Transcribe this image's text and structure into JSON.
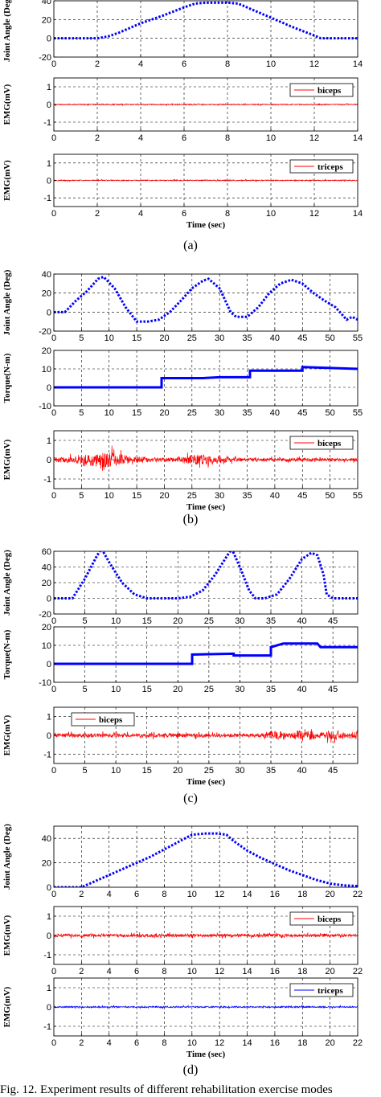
{
  "chart_data": [
    {
      "type": "line",
      "panel": "a",
      "ylabel": "Joint Angle (Deg)",
      "xlim": [
        0,
        14
      ],
      "ylim": [
        -20,
        40
      ],
      "xticks": [
        0,
        2,
        4,
        6,
        8,
        10,
        12,
        14
      ],
      "yticks": [
        -20,
        0,
        20,
        40
      ],
      "grid": true,
      "series": [
        {
          "color": "#0000ff",
          "style": "dotted",
          "x": [
            0,
            2,
            2.5,
            3,
            4,
            5,
            6,
            6.5,
            7,
            8,
            8.5,
            9,
            10,
            11,
            12,
            12.3,
            13,
            14
          ],
          "y": [
            0,
            0,
            2,
            6,
            16,
            24,
            33,
            37,
            38,
            38,
            37,
            32,
            22,
            12,
            3,
            0,
            0,
            0
          ]
        }
      ]
    },
    {
      "type": "line",
      "panel": "a",
      "ylabel": "EMG(mV)",
      "xlim": [
        0,
        14
      ],
      "ylim": [
        -1.5,
        1.5
      ],
      "xticks": [
        0,
        2,
        4,
        6,
        8,
        10,
        12,
        14
      ],
      "yticks": [
        -1,
        0,
        1
      ],
      "grid": true,
      "legend": "top-right",
      "series": [
        {
          "name": "biceps",
          "color": "#ff0000",
          "noise": 0.03,
          "x": [
            0,
            14
          ],
          "y": [
            0,
            0
          ]
        }
      ]
    },
    {
      "type": "line",
      "panel": "a",
      "ylabel": "EMG(mV)",
      "xlabel": "Time (sec)",
      "xlim": [
        0,
        14
      ],
      "ylim": [
        -1.5,
        1.5
      ],
      "xticks": [
        0,
        2,
        4,
        6,
        8,
        10,
        12,
        14
      ],
      "yticks": [
        -1,
        0,
        1
      ],
      "grid": true,
      "legend": "top-right",
      "series": [
        {
          "name": "triceps",
          "color": "#ff0000",
          "noise": 0.03,
          "x": [
            0,
            14
          ],
          "y": [
            0,
            0
          ]
        }
      ]
    },
    {
      "type": "line",
      "panel": "b",
      "ylabel": "Joint Angle (Deg)",
      "xlim": [
        0,
        55
      ],
      "ylim": [
        -20,
        40
      ],
      "xticks": [
        0,
        5,
        10,
        15,
        20,
        25,
        30,
        35,
        40,
        45,
        50,
        55
      ],
      "yticks": [
        -20,
        0,
        20,
        40
      ],
      "grid": true,
      "series": [
        {
          "color": "#0000ff",
          "style": "dotted",
          "x": [
            0,
            2,
            4,
            6,
            8,
            9,
            11,
            13,
            15,
            17,
            19,
            21,
            23,
            25,
            27,
            28,
            30,
            32,
            33,
            35,
            37,
            39,
            41,
            43,
            45,
            47,
            49,
            51,
            53,
            54,
            55
          ],
          "y": [
            0,
            0,
            12,
            22,
            35,
            37,
            25,
            5,
            -10,
            -10,
            -8,
            0,
            12,
            25,
            33,
            35,
            25,
            0,
            -5,
            -5,
            5,
            20,
            30,
            34,
            30,
            20,
            12,
            5,
            -8,
            -5,
            -8
          ]
        }
      ]
    },
    {
      "type": "line",
      "panel": "b",
      "ylabel": "Torque(N-m)",
      "xlim": [
        0,
        55
      ],
      "ylim": [
        -10,
        20
      ],
      "xticks": [
        0,
        5,
        10,
        15,
        20,
        25,
        30,
        35,
        40,
        45,
        50,
        55
      ],
      "yticks": [
        -10,
        0,
        10,
        20
      ],
      "grid": true,
      "series": [
        {
          "color": "#0000ff",
          "style": "thick",
          "x": [
            0,
            19.5,
            19.5,
            27,
            30,
            35.5,
            35.5,
            45,
            45,
            55
          ],
          "y": [
            0,
            0,
            5,
            5,
            5.5,
            5.5,
            9,
            9,
            11,
            10
          ]
        }
      ]
    },
    {
      "type": "line",
      "panel": "b",
      "ylabel": "EMG(mV)",
      "xlabel": "Time (sec)",
      "xlim": [
        0,
        55
      ],
      "ylim": [
        -1.5,
        1.5
      ],
      "xticks": [
        0,
        5,
        10,
        15,
        20,
        25,
        30,
        35,
        40,
        45,
        50,
        55
      ],
      "yticks": [
        -1,
        0,
        1
      ],
      "grid": true,
      "legend": "top-right",
      "series": [
        {
          "name": "biceps",
          "color": "#ff0000",
          "noise": 0.4,
          "x": [
            0,
            55
          ],
          "y": [
            0,
            0
          ]
        }
      ]
    },
    {
      "type": "line",
      "panel": "c",
      "ylabel": "Joint Angle (Deg)",
      "xlim": [
        0,
        49
      ],
      "ylim": [
        -20,
        60
      ],
      "xticks": [
        0,
        5,
        10,
        15,
        20,
        25,
        30,
        35,
        40,
        45
      ],
      "yticks": [
        -20,
        0,
        20,
        40,
        60
      ],
      "grid": true,
      "series": [
        {
          "color": "#0000ff",
          "style": "dotted",
          "x": [
            0,
            3,
            5,
            7,
            7.7,
            9,
            11,
            13,
            15,
            20,
            22,
            24,
            26,
            28,
            28.7,
            30,
            31.5,
            32.5,
            34,
            36,
            38,
            40,
            41.5,
            42.5,
            43.5,
            44,
            45,
            49
          ],
          "y": [
            0,
            0,
            25,
            55,
            63,
            45,
            20,
            5,
            0,
            0,
            2,
            10,
            30,
            55,
            63,
            40,
            10,
            0,
            0,
            5,
            25,
            50,
            58,
            55,
            30,
            5,
            0,
            0
          ]
        }
      ]
    },
    {
      "type": "line",
      "panel": "c",
      "ylabel": "Torque(N-m)",
      "xlim": [
        0,
        49
      ],
      "ylim": [
        -10,
        20
      ],
      "xticks": [
        0,
        5,
        10,
        15,
        20,
        25,
        30,
        35,
        40,
        45
      ],
      "yticks": [
        -10,
        0,
        10,
        20
      ],
      "grid": true,
      "series": [
        {
          "color": "#0000ff",
          "style": "thick",
          "x": [
            0,
            22.3,
            22.3,
            29,
            29,
            35,
            35,
            37,
            42.5,
            43,
            49
          ],
          "y": [
            0,
            0,
            5,
            5.5,
            4.5,
            4.5,
            9,
            11,
            11,
            9,
            9
          ]
        }
      ]
    },
    {
      "type": "line",
      "panel": "c",
      "ylabel": "EMG(mV)",
      "xlabel": "Time (sec)",
      "xlim": [
        0,
        49
      ],
      "ylim": [
        -1.5,
        1.5
      ],
      "xticks": [
        0,
        5,
        10,
        15,
        20,
        25,
        30,
        35,
        40,
        45
      ],
      "yticks": [
        -1,
        0,
        1
      ],
      "grid": true,
      "legend": "top-left",
      "series": [
        {
          "name": "biceps",
          "color": "#ff0000",
          "noise": 0.3,
          "x": [
            0,
            49
          ],
          "y": [
            0,
            0
          ]
        }
      ]
    },
    {
      "type": "line",
      "panel": "d",
      "ylabel": "Joint Angle (Deg)",
      "xlim": [
        0,
        22
      ],
      "ylim": [
        0,
        50
      ],
      "xticks": [
        0,
        2,
        4,
        6,
        8,
        10,
        12,
        14,
        16,
        18,
        20,
        22
      ],
      "yticks": [
        0,
        20,
        40
      ],
      "grid": true,
      "series": [
        {
          "color": "#0000ff",
          "style": "dotted",
          "x": [
            0,
            2,
            3,
            4,
            5,
            6,
            7,
            8,
            9,
            10,
            11,
            11.8,
            12.5,
            13,
            14,
            15,
            16,
            17,
            18,
            19,
            20,
            21,
            22
          ],
          "y": [
            0,
            0,
            5,
            10,
            15,
            20,
            25,
            31,
            37,
            43,
            44,
            44,
            43,
            38,
            30,
            24,
            19,
            14,
            10,
            6,
            3,
            1.5,
            1
          ]
        }
      ]
    },
    {
      "type": "line",
      "panel": "d",
      "ylabel": "EMG(mV)",
      "xlim": [
        0,
        22
      ],
      "ylim": [
        -1.5,
        1.5
      ],
      "xticks": [
        0,
        2,
        4,
        6,
        8,
        10,
        12,
        14,
        16,
        18,
        20,
        22
      ],
      "yticks": [
        -1,
        0,
        1
      ],
      "grid": true,
      "legend": "top-right",
      "series": [
        {
          "name": "biceps",
          "color": "#ff0000",
          "noise": 0.08,
          "x": [
            0,
            22
          ],
          "y": [
            0,
            0
          ]
        }
      ]
    },
    {
      "type": "line",
      "panel": "d",
      "ylabel": "EMG(mV)",
      "xlabel": "Time (sec)",
      "xlim": [
        0,
        22
      ],
      "ylim": [
        -1.5,
        1.5
      ],
      "xticks": [
        0,
        2,
        4,
        6,
        8,
        10,
        12,
        14,
        16,
        18,
        20,
        22
      ],
      "yticks": [
        -1,
        0,
        1
      ],
      "grid": true,
      "legend": "top-right",
      "series": [
        {
          "name": "triceps",
          "color": "#0000ff",
          "noise": 0.04,
          "x": [
            0,
            22
          ],
          "y": [
            0,
            0
          ]
        }
      ]
    }
  ],
  "captions": {
    "a": "(a)",
    "b": "(b)",
    "c": "(c)",
    "d": "(d)"
  },
  "figure_caption": "Fig. 12. Experiment results of different rehabilitation exercise modes"
}
